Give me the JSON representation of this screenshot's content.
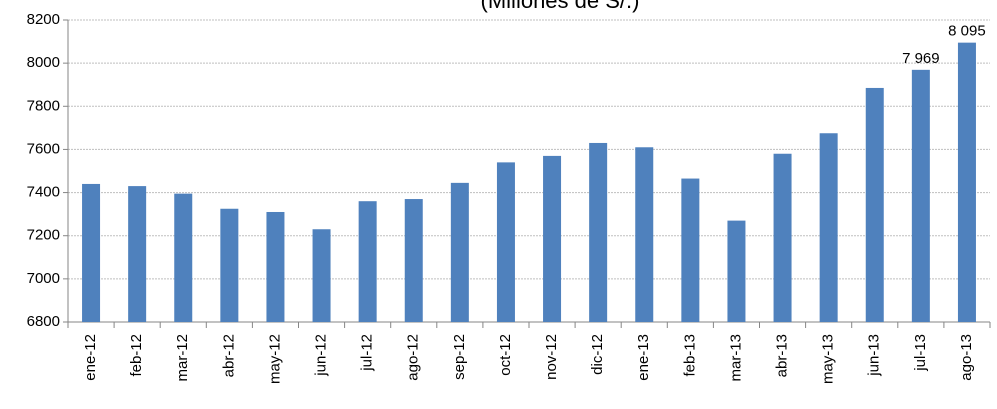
{
  "chart_data": {
    "type": "bar",
    "title": "(Millones de S/.)",
    "categories": [
      "ene-12",
      "feb-12",
      "mar-12",
      "abr-12",
      "may-12",
      "jun-12",
      "jul-12",
      "ago-12",
      "sep-12",
      "oct-12",
      "nov-12",
      "dic-12",
      "ene-13",
      "feb-13",
      "mar-13",
      "abr-13",
      "may-13",
      "jun-13",
      "jul-13",
      "ago-13"
    ],
    "values": [
      7440,
      7430,
      7395,
      7325,
      7310,
      7230,
      7360,
      7370,
      7445,
      7540,
      7570,
      7630,
      7610,
      7465,
      7270,
      7580,
      7675,
      7885,
      7969,
      8095
    ],
    "value_labels": [
      null,
      null,
      null,
      null,
      null,
      null,
      null,
      null,
      null,
      null,
      null,
      null,
      null,
      null,
      null,
      null,
      null,
      null,
      "7 969",
      "8 095"
    ],
    "color": "#4f81bd",
    "ylim": [
      6800,
      8200
    ],
    "yticks": [
      6800,
      7000,
      7200,
      7400,
      7600,
      7800,
      8000,
      8200
    ],
    "grid": true
  }
}
